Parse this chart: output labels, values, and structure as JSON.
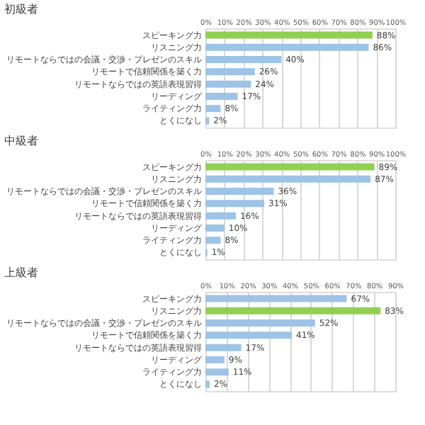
{
  "chart_data": [
    {
      "type": "bar",
      "orientation": "horizontal",
      "title": "初級者",
      "grid": "x",
      "categories": [
        "スピーキング力",
        "リスニング力",
        "リモートならではの会議・交渉・プレゼンのスキル",
        "リモートで信頼関係を築く力",
        "リモートならではの英語表現習得",
        "リーディング",
        "ライティング力",
        "とくになし"
      ],
      "values": [
        88,
        86,
        40,
        26,
        24,
        17,
        8,
        2
      ],
      "value_labels": [
        "88%",
        "86%",
        "40%",
        "26%",
        "24%",
        "17%",
        "8%",
        "2%"
      ],
      "colors": [
        "#92d050",
        "#9dc3e6",
        "#9dc3e6",
        "#9dc3e6",
        "#9dc3e6",
        "#9dc3e6",
        "#9dc3e6",
        "#9dc3e6"
      ],
      "xlim": [
        0,
        100
      ],
      "xticks": [
        {
          "value": 0,
          "label": "0%"
        },
        {
          "value": 10,
          "label": "10%"
        },
        {
          "value": 20,
          "label": "20%"
        },
        {
          "value": 30,
          "label": "30%"
        },
        {
          "value": 40,
          "label": "40%"
        },
        {
          "value": 50,
          "label": "50%"
        },
        {
          "value": 60,
          "label": "60%"
        },
        {
          "value": 70,
          "label": "70%"
        },
        {
          "value": 80,
          "label": "80%"
        },
        {
          "value": 90,
          "label": "90%"
        },
        {
          "value": 100,
          "label": "100%"
        }
      ]
    },
    {
      "type": "bar",
      "orientation": "horizontal",
      "title": "中級者",
      "grid": "x",
      "categories": [
        "スピーキング力",
        "リスニング力",
        "リモートならではの会議・交渉・プレゼンのスキル",
        "リモートで信頼関係を築く力",
        "リモートならではの英語表現習得",
        "リーディング",
        "ライティング力",
        "とくになし"
      ],
      "values": [
        89,
        87,
        36,
        31,
        16,
        10,
        8,
        1
      ],
      "value_labels": [
        "89%",
        "87%",
        "36%",
        "31%",
        "16%",
        "10%",
        "8%",
        "1%"
      ],
      "colors": [
        "#92d050",
        "#9dc3e6",
        "#9dc3e6",
        "#9dc3e6",
        "#9dc3e6",
        "#9dc3e6",
        "#9dc3e6",
        "#9dc3e6"
      ],
      "xlim": [
        0,
        100
      ],
      "xticks": [
        {
          "value": 0,
          "label": "0%"
        },
        {
          "value": 10,
          "label": "10%"
        },
        {
          "value": 20,
          "label": "20%"
        },
        {
          "value": 30,
          "label": "30%"
        },
        {
          "value": 40,
          "label": "40%"
        },
        {
          "value": 50,
          "label": "50%"
        },
        {
          "value": 60,
          "label": "60%"
        },
        {
          "value": 70,
          "label": "70%"
        },
        {
          "value": 80,
          "label": "80%"
        },
        {
          "value": 90,
          "label": "90%"
        },
        {
          "value": 100,
          "label": "100%"
        }
      ]
    },
    {
      "type": "bar",
      "orientation": "horizontal",
      "title": "上級者",
      "grid": "x",
      "categories": [
        "スピーキング力",
        "リスニング力",
        "リモートならではの会議・交渉・プレゼンのスキル",
        "リモートで信頼関係を築く力",
        "リモートならではの英語表現習得",
        "リーディング",
        "ライティング力",
        "とくになし"
      ],
      "values": [
        67,
        83,
        52,
        41,
        17,
        9,
        11,
        2
      ],
      "value_labels": [
        "67%",
        "83%",
        "52%",
        "41%",
        "17%",
        "9%",
        "11%",
        "2%"
      ],
      "colors": [
        "#9dc3e6",
        "#92d050",
        "#9dc3e6",
        "#9dc3e6",
        "#9dc3e6",
        "#9dc3e6",
        "#9dc3e6",
        "#9dc3e6"
      ],
      "xlim": [
        0,
        90
      ],
      "xticks": [
        {
          "value": 0,
          "label": "0%"
        },
        {
          "value": 10,
          "label": "10%"
        },
        {
          "value": 20,
          "label": "20%"
        },
        {
          "value": 30,
          "label": "30%"
        },
        {
          "value": 40,
          "label": "40%"
        },
        {
          "value": 50,
          "label": "50%"
        },
        {
          "value": 60,
          "label": "60%"
        },
        {
          "value": 70,
          "label": "70%"
        },
        {
          "value": 80,
          "label": "80%"
        },
        {
          "value": 90,
          "label": "90%"
        }
      ]
    }
  ]
}
